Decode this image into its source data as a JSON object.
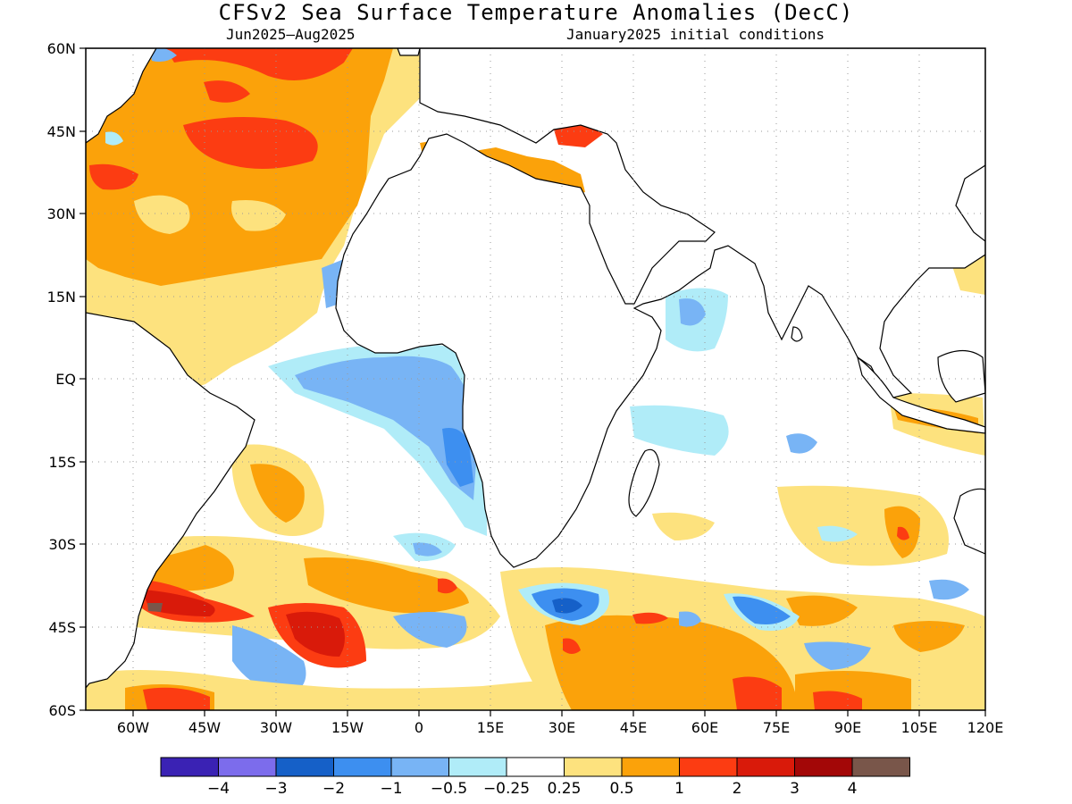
{
  "title": "CFSv2 Sea Surface Temperature Anomalies (DecC)",
  "subtitle_left": "Jun2025–Aug2025",
  "subtitle_right": "January2025 initial conditions",
  "lat_labels": [
    "60N",
    "45N",
    "30N",
    "15N",
    "EQ",
    "15S",
    "30S",
    "45S",
    "60S"
  ],
  "lon_labels": [
    "60W",
    "45W",
    "30W",
    "15W",
    "0",
    "15E",
    "30E",
    "45E",
    "60E",
    "75E",
    "90E",
    "105E",
    "120E"
  ],
  "colorbar": {
    "colors": [
      "#3a22b4",
      "#7c6cec",
      "#1560c8",
      "#3d8ff0",
      "#78b4f5",
      "#b0ecf8",
      "#ffffff",
      "#fde27e",
      "#fba20a",
      "#fc3c12",
      "#d91a0a",
      "#a30707",
      "#79564a"
    ],
    "labels": [
      "−4",
      "−3",
      "−2",
      "−1",
      "−0.5",
      "−0.25",
      "0.25",
      "0.5",
      "1",
      "2",
      "3",
      "4"
    ]
  },
  "palette": {
    "pale_yellow": "#fde27e",
    "orange": "#fba20a",
    "red_orange": "#fc3c12",
    "red": "#d91a0a",
    "dark_red": "#a30707",
    "brown": "#79564a",
    "light_cyan": "#b0ecf8",
    "light_blue": "#78b4f5",
    "blue": "#3d8ff0",
    "dark_blue": "#1560c8"
  }
}
